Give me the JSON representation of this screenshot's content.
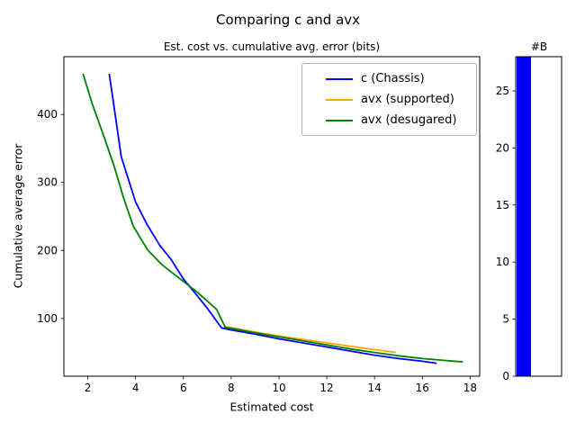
{
  "figure": {
    "suptitle": "Comparing c and avx",
    "background": "#ffffff"
  },
  "chart_data": [
    {
      "type": "line",
      "title": "Est. cost vs. cumulative avg. error (bits)",
      "xlabel": "Estimated cost",
      "ylabel": "Cumulative average error",
      "xlim": [
        1.0,
        18.4
      ],
      "ylim": [
        15,
        485
      ],
      "xticks": [
        2,
        4,
        6,
        8,
        10,
        12,
        14,
        16,
        18
      ],
      "yticks": [
        100,
        200,
        300,
        400
      ],
      "grid": false,
      "legend": {
        "position": "upper right",
        "edge_color": "#b3b3b3"
      },
      "series": [
        {
          "name": "c (Chassis)",
          "color": "#0000ff",
          "points": [
            [
              2.9,
              460
            ],
            [
              3.4,
              338
            ],
            [
              4.0,
              271
            ],
            [
              4.5,
              237
            ],
            [
              5.0,
              208
            ],
            [
              5.5,
              186
            ],
            [
              6.0,
              158
            ],
            [
              6.5,
              137
            ],
            [
              7.0,
              115
            ],
            [
              7.6,
              86
            ],
            [
              8.0,
              83
            ],
            [
              9.0,
              77
            ],
            [
              10.0,
              70
            ],
            [
              11.0,
              64
            ],
            [
              12.0,
              58
            ],
            [
              13.0,
              52
            ],
            [
              14.0,
              46
            ],
            [
              15.0,
              41
            ],
            [
              16.0,
              37
            ],
            [
              16.6,
              34
            ]
          ]
        },
        {
          "name": "avx (supported)",
          "color": "#ffa500",
          "points": [
            [
              7.75,
              88
            ],
            [
              9.0,
              80
            ],
            [
              10.0,
              74
            ],
            [
              11.0,
              69
            ],
            [
              12.0,
              64
            ],
            [
              13.0,
              59
            ],
            [
              14.0,
              54
            ],
            [
              14.9,
              50
            ]
          ]
        },
        {
          "name": "avx (desugared)",
          "color": "#008000",
          "points": [
            [
              1.8,
              460
            ],
            [
              2.2,
              414
            ],
            [
              2.6,
              375
            ],
            [
              3.1,
              324
            ],
            [
              3.5,
              277
            ],
            [
              3.9,
              236
            ],
            [
              4.5,
              201
            ],
            [
              5.1,
              179
            ],
            [
              5.9,
              157
            ],
            [
              6.6,
              138
            ],
            [
              7.4,
              113
            ],
            [
              7.75,
              87
            ],
            [
              9.0,
              79
            ],
            [
              10.0,
              73
            ],
            [
              11.0,
              67
            ],
            [
              12.0,
              61
            ],
            [
              13.0,
              55
            ],
            [
              14.0,
              50
            ],
            [
              15.0,
              45
            ],
            [
              16.0,
              41
            ],
            [
              17.0,
              38
            ],
            [
              17.7,
              36
            ]
          ]
        }
      ]
    },
    {
      "type": "bar",
      "title": "#B",
      "categories": [
        ""
      ],
      "values": [
        28
      ],
      "bar_color": "#0000ff",
      "ylim": [
        0,
        28
      ],
      "yticks": [
        0,
        5,
        10,
        15,
        20,
        25
      ],
      "grid": false
    }
  ]
}
